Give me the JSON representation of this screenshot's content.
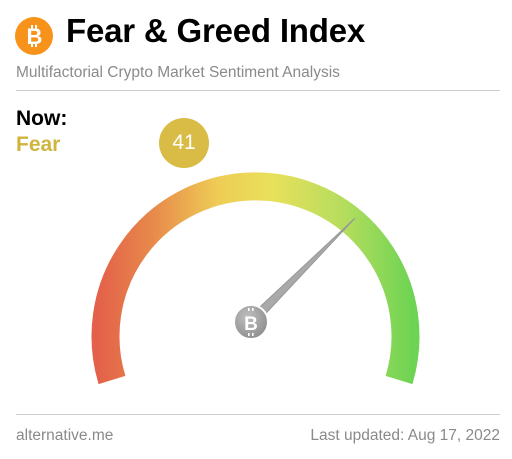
{
  "header": {
    "title": "Fear & Greed Index",
    "subtitle": "Multifactorial Crypto Market Sentiment Analysis"
  },
  "current": {
    "label": "Now:",
    "classification": "Fear",
    "value": "41",
    "index_value": 41,
    "index_min": 0,
    "index_max": 100,
    "classification_color": "#cfb43e",
    "badge_color": "#d8bc45"
  },
  "gauge": {
    "gradient_colors": [
      "#e3604a",
      "#e88a4b",
      "#eecc55",
      "#e9e05a",
      "#b5dd5e",
      "#6dd353"
    ]
  },
  "footer": {
    "source": "alternative.me",
    "last_updated": "Last updated: Aug 17, 2022"
  },
  "icons": [
    "bitcoin-logo-icon",
    "bitcoin-hub-icon"
  ]
}
